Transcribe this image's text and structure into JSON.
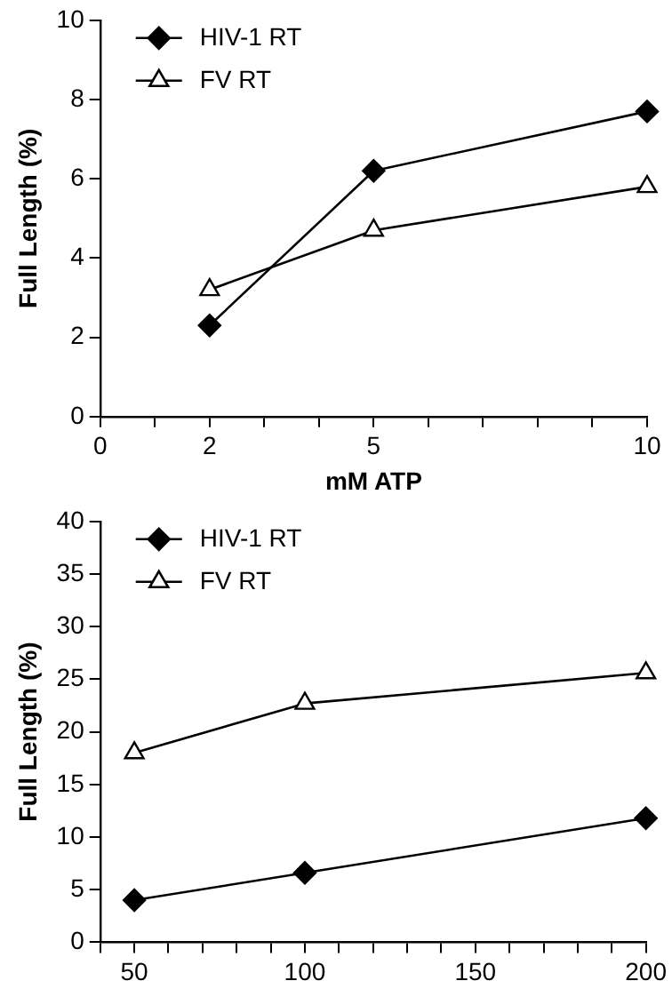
{
  "chart_data": [
    {
      "type": "line",
      "xlabel": "mM ATP",
      "ylabel": "Full Length (%)",
      "x": [
        2,
        5,
        10
      ],
      "xlim": [
        0,
        10
      ],
      "xticks": [
        0,
        {
          "value": 1,
          "label": null
        },
        2,
        {
          "value": 3,
          "label": null
        },
        {
          "value": 4,
          "label": null
        },
        5,
        {
          "value": 6,
          "label": null
        },
        {
          "value": 7,
          "label": null
        },
        {
          "value": 8,
          "label": null
        },
        {
          "value": 9,
          "label": null
        },
        10
      ],
      "ylim": [
        0,
        10
      ],
      "yticks": [
        0,
        2,
        4,
        6,
        8,
        10
      ],
      "grid": false,
      "legend": "top left",
      "line_style": "solid",
      "series": [
        {
          "name": "HIV-1 RT",
          "color": "#000000",
          "marker": "diamond",
          "values": [
            2.3,
            6.2,
            7.7
          ]
        },
        {
          "name": "FV RT",
          "color": "#000000",
          "marker": "triangle",
          "values": [
            3.2,
            4.7,
            5.8
          ]
        }
      ]
    },
    {
      "type": "line",
      "ylabel": "Full Length (%)",
      "x": [
        50,
        100,
        200
      ],
      "xlim": [
        40,
        200
      ],
      "xticks": [
        {
          "value": 40,
          "label": null
        },
        50,
        {
          "value": 60,
          "label": null
        },
        {
          "value": 70,
          "label": null
        },
        {
          "value": 80,
          "label": null
        },
        {
          "value": 90,
          "label": null
        },
        100,
        {
          "value": 110,
          "label": null
        },
        {
          "value": 120,
          "label": null
        },
        {
          "value": 130,
          "label": null
        },
        {
          "value": 140,
          "label": null
        },
        150,
        {
          "value": 160,
          "label": null
        },
        {
          "value": 170,
          "label": null
        },
        {
          "value": 180,
          "label": null
        },
        {
          "value": 190,
          "label": null
        },
        200
      ],
      "ylim": [
        0,
        40
      ],
      "yticks": [
        0,
        5,
        10,
        15,
        20,
        25,
        30,
        35,
        40
      ],
      "grid": false,
      "legend": "top left",
      "line_style": "solid",
      "series": [
        {
          "name": "HIV-1 RT",
          "color": "#000000",
          "marker": "diamond",
          "values": [
            4,
            6.6,
            11.8
          ]
        },
        {
          "name": "FV RT",
          "color": "#000000",
          "marker": "triangle",
          "values": [
            18,
            22.7,
            25.6
          ]
        }
      ]
    }
  ]
}
